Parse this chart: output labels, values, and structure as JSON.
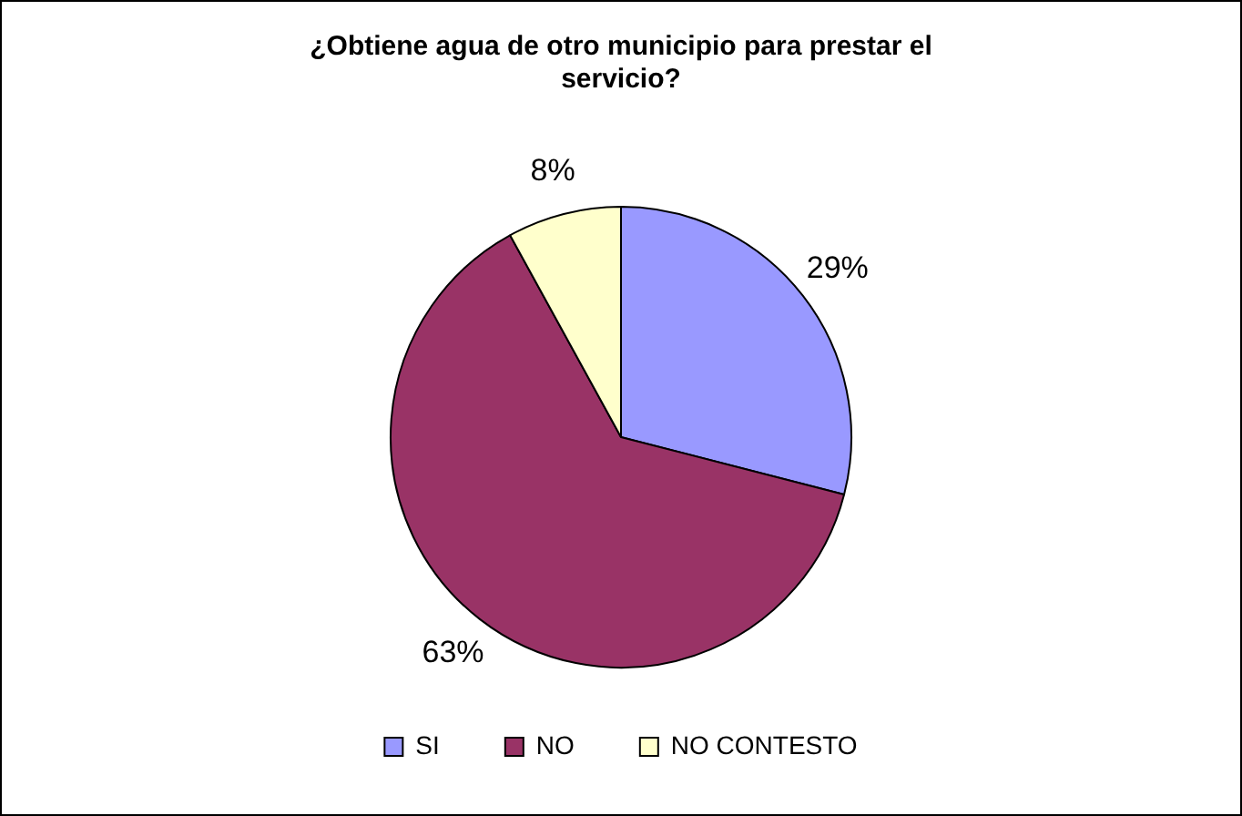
{
  "chart_data": {
    "type": "pie",
    "title": "¿Obtiene agua de otro municipio para prestar el servicio?",
    "categories": [
      "SI",
      "NO",
      "NO CONTESTO"
    ],
    "values": [
      29,
      63,
      8
    ],
    "colors": [
      "#9999ff",
      "#993366",
      "#ffffcc"
    ],
    "value_labels": [
      "29%",
      "63%",
      "8%"
    ],
    "legend": "bottom"
  }
}
